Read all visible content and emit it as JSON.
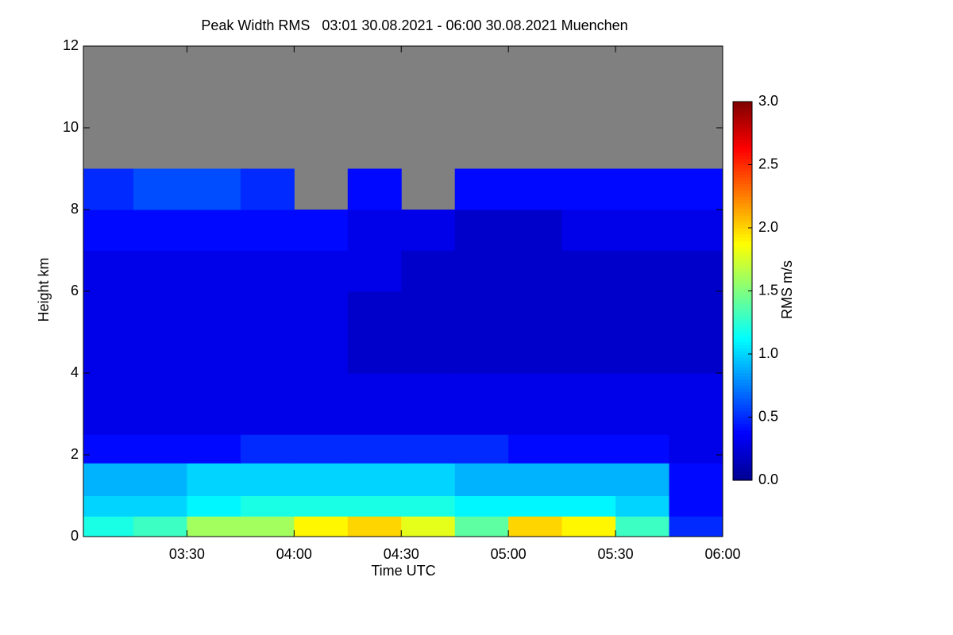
{
  "chart_data": {
    "type": "heatmap",
    "title": "Peak Width RMS   03:01 30.08.2021 - 06:00 30.08.2021 Muenchen",
    "x_label": "Time UTC",
    "y_label": "Height km",
    "colorbar_label": "RMS m/s",
    "colormap": "jet",
    "missing_color": "#808080",
    "xlim": [
      181,
      360
    ],
    "xticks": [
      {
        "value": 210,
        "label": "03:30"
      },
      {
        "value": 240,
        "label": "04:00"
      },
      {
        "value": 270,
        "label": "04:30"
      },
      {
        "value": 300,
        "label": "05:00"
      },
      {
        "value": 330,
        "label": "05:30"
      },
      {
        "value": 360,
        "label": "06:00"
      }
    ],
    "ylim": [
      0,
      12
    ],
    "yticks": [
      0,
      2,
      4,
      6,
      8,
      10,
      12
    ],
    "clim": [
      0,
      3
    ],
    "cticks": [
      {
        "value": 0,
        "label": "0.0"
      },
      {
        "value": 0.5,
        "label": "0.5"
      },
      {
        "value": 1,
        "label": "1.0"
      },
      {
        "value": 1.5,
        "label": "1.5"
      },
      {
        "value": 2,
        "label": "2.0"
      },
      {
        "value": 2.5,
        "label": "2.5"
      },
      {
        "value": 3,
        "label": "3.0"
      }
    ],
    "x_edges": [
      181,
      195,
      210,
      225,
      240,
      255,
      270,
      285,
      300,
      315,
      330,
      345,
      360
    ],
    "y_edges": [
      0,
      0.5,
      1,
      1.8,
      2.5,
      4,
      6,
      7,
      8,
      9
    ],
    "values": [
      [
        1.2,
        1.3,
        1.6,
        1.6,
        1.9,
        2.0,
        1.8,
        1.4,
        2.0,
        1.9,
        1.3,
        0.5
      ],
      [
        1.0,
        1.0,
        1.1,
        1.2,
        1.2,
        1.2,
        1.2,
        1.1,
        1.1,
        1.1,
        1.0,
        0.4
      ],
      [
        0.9,
        0.9,
        1.0,
        1.0,
        1.0,
        1.0,
        1.0,
        0.9,
        0.9,
        0.9,
        0.9,
        0.4
      ],
      [
        0.4,
        0.4,
        0.4,
        0.5,
        0.5,
        0.5,
        0.5,
        0.5,
        0.4,
        0.4,
        0.4,
        0.3
      ],
      [
        0.3,
        0.3,
        0.3,
        0.3,
        0.3,
        0.3,
        0.3,
        0.3,
        0.3,
        0.3,
        0.3,
        0.3
      ],
      [
        0.3,
        0.3,
        0.3,
        0.3,
        0.3,
        0.2,
        0.2,
        0.2,
        0.2,
        0.2,
        0.2,
        0.2
      ],
      [
        0.3,
        0.3,
        0.3,
        0.3,
        0.3,
        0.3,
        0.2,
        0.2,
        0.2,
        0.2,
        0.2,
        0.2
      ],
      [
        0.4,
        0.4,
        0.4,
        0.4,
        0.4,
        0.3,
        0.3,
        0.2,
        0.2,
        0.3,
        0.3,
        0.3
      ],
      [
        0.5,
        0.6,
        0.6,
        0.5,
        null,
        0.4,
        null,
        0.4,
        0.4,
        0.4,
        0.4,
        0.4
      ]
    ]
  }
}
